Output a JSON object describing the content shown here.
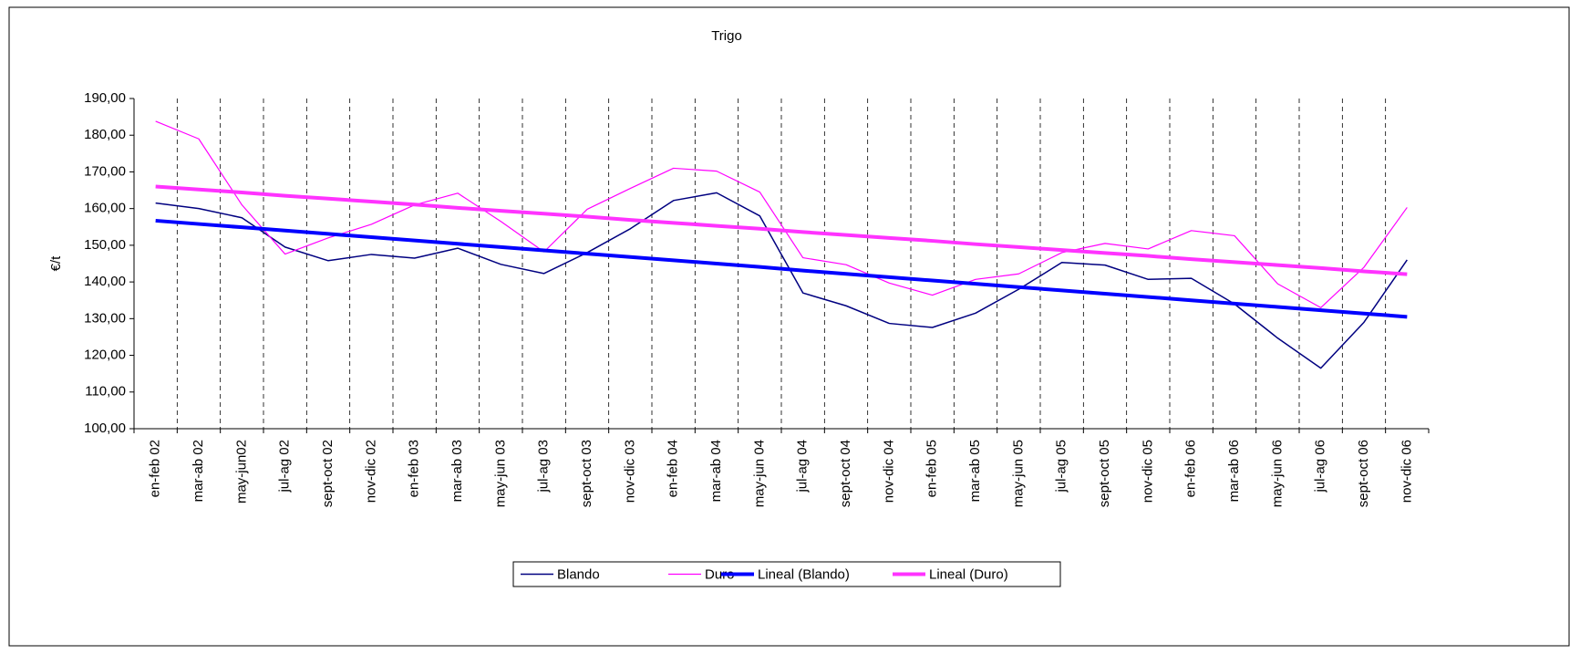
{
  "chart_data": {
    "type": "line",
    "title": "Trigo",
    "y_label": "€/t",
    "categories": [
      "en-feb 02",
      "mar-ab 02",
      "may-jun02",
      "jul-ag 02",
      "sept-oct 02",
      "nov-dic 02",
      "en-feb 03",
      "mar-ab  03",
      "may-jun  03",
      "jul-ag  03",
      "sept-oct  03",
      "nov-dic  03",
      "en-feb 04",
      "mar-ab  04",
      "may-jun  04",
      "jul-ag  04",
      "sept-oct  04",
      "nov-dic  04",
      "en-feb 05",
      "mar-ab 05",
      "may-jun 05",
      "jul-ag 05",
      "sept-oct 05",
      "nov-dic 05",
      "en-feb 06",
      "mar-ab  06",
      "may-jun  06",
      "jul-ag  06",
      "sept-oct  06",
      "nov-dic  06"
    ],
    "series": [
      {
        "name": "Blando",
        "color": "#000080",
        "width": 1.5,
        "values": [
          161.5,
          160,
          157.5,
          149.5,
          145.8,
          147.5,
          146.5,
          149.2,
          144.8,
          142.3,
          148,
          154.5,
          162.2,
          164.3,
          158,
          137,
          133.5,
          128.7,
          127.6,
          131.5,
          138,
          145.3,
          144.6,
          140.7,
          141,
          134,
          124.7,
          116.5,
          129,
          146
        ]
      },
      {
        "name": "Duro",
        "color": "#ff00ff",
        "width": 1.2,
        "values": [
          183.8,
          179,
          161,
          147.6,
          152,
          155.7,
          161,
          164.2,
          156.5,
          148.2,
          159.8,
          165.5,
          171,
          170.2,
          164.5,
          146.6,
          144.7,
          139.7,
          136.4,
          140.7,
          142.2,
          148,
          150.5,
          149,
          154,
          152.6,
          139.5,
          133,
          144,
          160.3
        ]
      },
      {
        "name": "Lineal (Blando)",
        "color": "#0000ff",
        "width": 4,
        "values": [
          156.7,
          155.8,
          154.9,
          154.0,
          153.1,
          152.2,
          151.3,
          150.4,
          149.5,
          148.6,
          147.7,
          146.8,
          145.9,
          145.0,
          144.1,
          143.1,
          142.2,
          141.3,
          140.4,
          139.5,
          138.6,
          137.7,
          136.8,
          135.9,
          135.0,
          134.1,
          133.2,
          132.3,
          131.4,
          130.5
        ]
      },
      {
        "name": "Lineal (Duro)",
        "color": "#ff33ff",
        "width": 4,
        "values": [
          166.0,
          165.2,
          164.4,
          163.5,
          162.7,
          161.9,
          161.1,
          160.2,
          159.4,
          158.6,
          157.8,
          156.9,
          156.1,
          155.3,
          154.5,
          153.6,
          152.8,
          152.0,
          151.2,
          150.3,
          149.5,
          148.7,
          147.9,
          147.1,
          146.2,
          145.4,
          144.6,
          143.8,
          142.9,
          142.1
        ]
      }
    ],
    "ylim": [
      100,
      190
    ],
    "yticks": [
      {
        "value": 100,
        "label": "100,00"
      },
      {
        "value": 110,
        "label": "110,00"
      },
      {
        "value": 120,
        "label": "120,00"
      },
      {
        "value": 130,
        "label": "130,00"
      },
      {
        "value": 140,
        "label": "140,00"
      },
      {
        "value": 150,
        "label": "150,00"
      },
      {
        "value": 160,
        "label": "160,00"
      },
      {
        "value": 170,
        "label": "170,00"
      },
      {
        "value": 180,
        "label": "180,00"
      },
      {
        "value": 190,
        "label": "190,00"
      }
    ],
    "legend": "bottom"
  }
}
